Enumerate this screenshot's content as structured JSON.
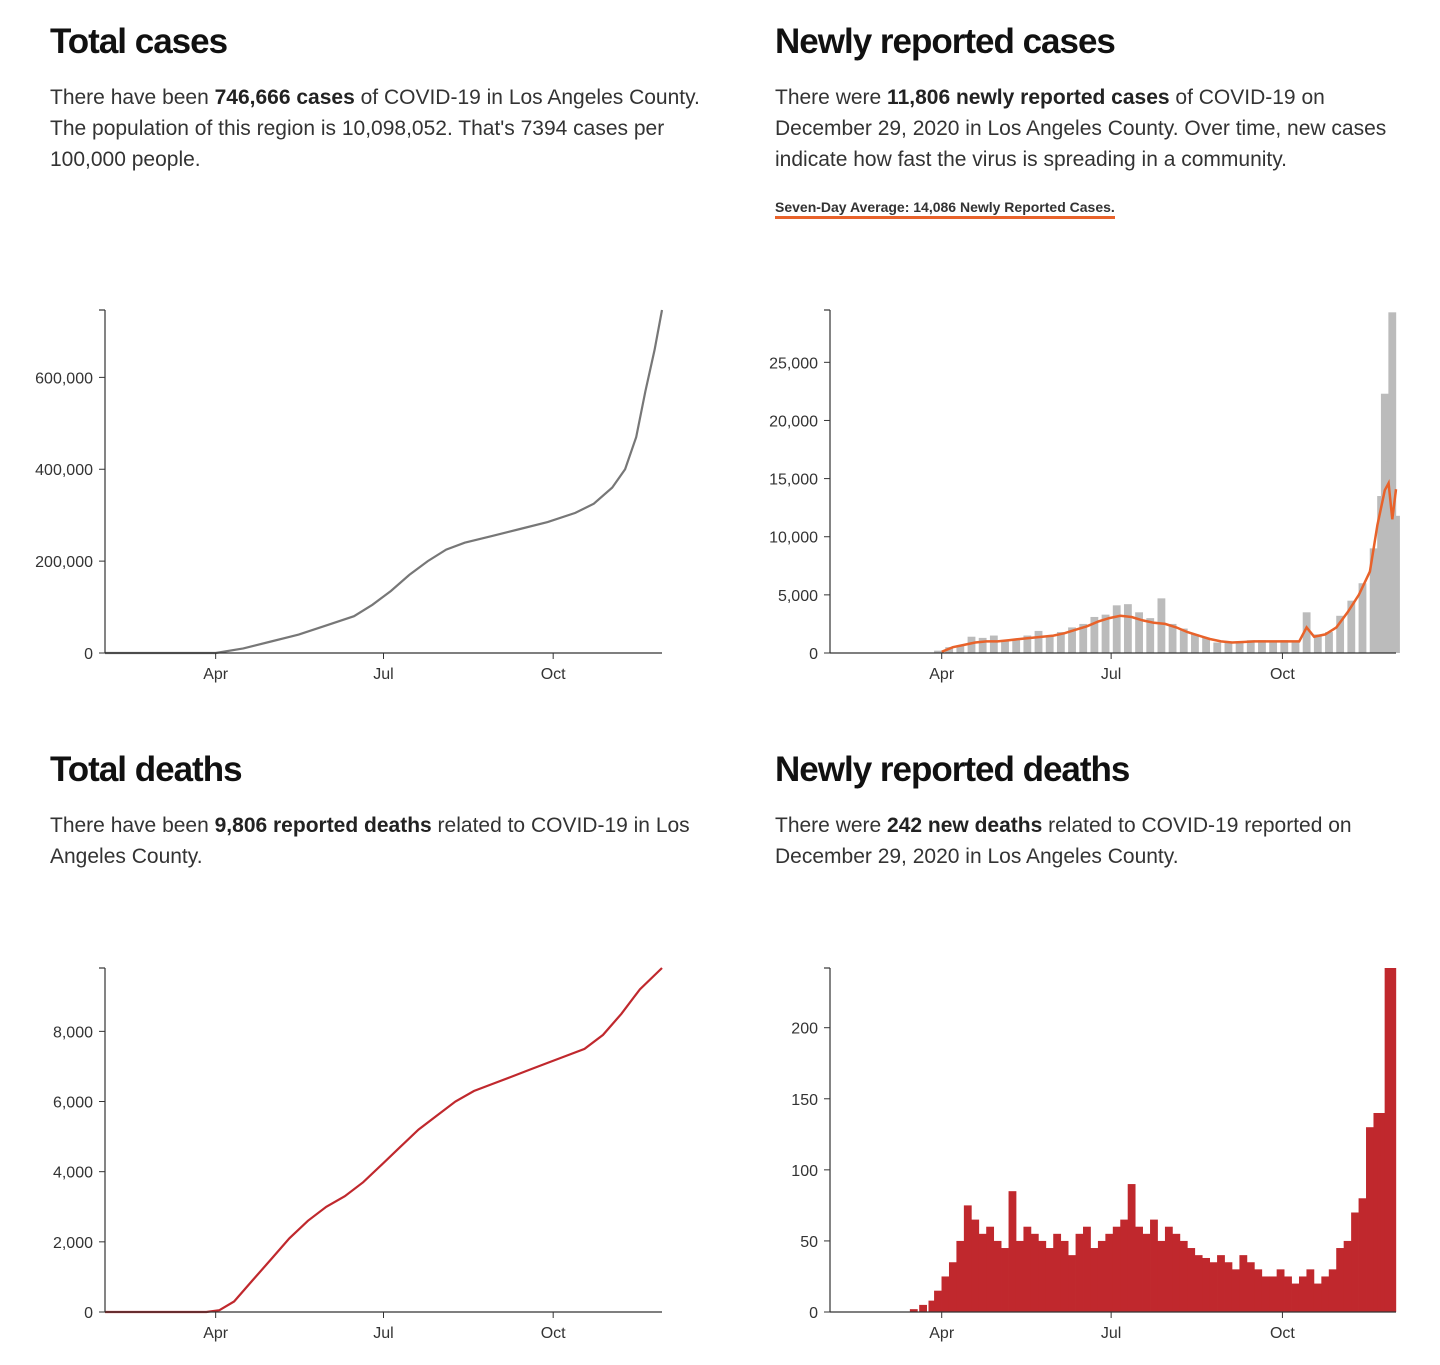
{
  "panels": {
    "total_cases": {
      "title": "Total cases",
      "desc_pre": "There have been ",
      "desc_bold": "746,666 cases",
      "desc_post": " of COVID-19 in Los Angeles County. The population of this region is 10,098,052. That's 7394 cases per 100,000 people."
    },
    "new_cases": {
      "title": "Newly reported cases",
      "desc_pre": "There were ",
      "desc_bold": "11,806 newly reported cases",
      "desc_post": " of COVID-19 on December 29, 2020 in Los Angeles County. Over time, new cases indicate how fast the virus is spreading in a community.",
      "avg_label": "Seven-Day Average: 14,086 Newly Reported Cases."
    },
    "total_deaths": {
      "title": "Total deaths",
      "desc_pre": "There have been ",
      "desc_bold": "9,806 reported deaths",
      "desc_post": " related to COVID-19 in Los Angeles County."
    },
    "new_deaths": {
      "title": "Newly reported deaths",
      "desc_pre": "There were ",
      "desc_bold": "242 new deaths",
      "desc_post": " related to COVID-19 reported on December 29, 2020 in Los Angeles County."
    }
  },
  "colors": {
    "cases_line": "#777777",
    "cases_bar": "#bbbbbb",
    "avg_line": "#e8622a",
    "deaths": "#c0282d",
    "axis": "#333333"
  },
  "chart_data": [
    {
      "id": "total-cases",
      "type": "line",
      "title": "Total cases",
      "x_domain_days": [
        0,
        302
      ],
      "x_ticks": [
        {
          "day": 60,
          "label": "Apr"
        },
        {
          "day": 151,
          "label": "Jul"
        },
        {
          "day": 243,
          "label": "Oct"
        }
      ],
      "y_domain": [
        0,
        746666
      ],
      "y_ticks": [
        {
          "value": 0,
          "label": "0"
        },
        {
          "value": 200000,
          "label": "200,000"
        },
        {
          "value": 400000,
          "label": "400,000"
        },
        {
          "value": 600000,
          "label": "600,000"
        }
      ],
      "points": [
        [
          60,
          0
        ],
        [
          75,
          10000
        ],
        [
          90,
          25000
        ],
        [
          105,
          40000
        ],
        [
          120,
          60000
        ],
        [
          135,
          80000
        ],
        [
          145,
          105000
        ],
        [
          155,
          135000
        ],
        [
          165,
          170000
        ],
        [
          175,
          200000
        ],
        [
          185,
          225000
        ],
        [
          195,
          240000
        ],
        [
          210,
          255000
        ],
        [
          225,
          270000
        ],
        [
          240,
          285000
        ],
        [
          255,
          305000
        ],
        [
          265,
          325000
        ],
        [
          275,
          360000
        ],
        [
          282,
          400000
        ],
        [
          288,
          470000
        ],
        [
          293,
          570000
        ],
        [
          298,
          660000
        ],
        [
          302,
          746666
        ]
      ]
    },
    {
      "id": "new-cases",
      "type": "bar+line",
      "title": "Newly reported cases",
      "x_domain_days": [
        0,
        304
      ],
      "x_ticks": [
        {
          "day": 60,
          "label": "Apr"
        },
        {
          "day": 151,
          "label": "Jul"
        },
        {
          "day": 243,
          "label": "Oct"
        }
      ],
      "y_domain": [
        0,
        29500
      ],
      "y_ticks": [
        {
          "value": 0,
          "label": "0"
        },
        {
          "value": 5000,
          "label": "5,000"
        },
        {
          "value": 10000,
          "label": "10,000"
        },
        {
          "value": 15000,
          "label": "15,000"
        },
        {
          "value": 20000,
          "label": "20,000"
        },
        {
          "value": 25000,
          "label": "25,000"
        }
      ],
      "bars": [
        [
          58,
          200
        ],
        [
          64,
          500
        ],
        [
          70,
          600
        ],
        [
          76,
          1400
        ],
        [
          82,
          1300
        ],
        [
          88,
          1500
        ],
        [
          94,
          1000
        ],
        [
          100,
          1200
        ],
        [
          106,
          1500
        ],
        [
          112,
          1900
        ],
        [
          118,
          1500
        ],
        [
          124,
          1800
        ],
        [
          130,
          2200
        ],
        [
          136,
          2500
        ],
        [
          142,
          3100
        ],
        [
          148,
          3300
        ],
        [
          154,
          4100
        ],
        [
          160,
          4200
        ],
        [
          166,
          3500
        ],
        [
          172,
          3000
        ],
        [
          178,
          4700
        ],
        [
          184,
          2500
        ],
        [
          190,
          2100
        ],
        [
          196,
          1600
        ],
        [
          202,
          1300
        ],
        [
          208,
          900
        ],
        [
          214,
          950
        ],
        [
          220,
          1000
        ],
        [
          226,
          1100
        ],
        [
          232,
          1100
        ],
        [
          238,
          1000
        ],
        [
          244,
          1100
        ],
        [
          250,
          1000
        ],
        [
          256,
          3500
        ],
        [
          262,
          1600
        ],
        [
          268,
          1800
        ],
        [
          274,
          3200
        ],
        [
          280,
          4500
        ],
        [
          286,
          6000
        ],
        [
          292,
          9000
        ],
        [
          296,
          13500
        ],
        [
          298,
          22300
        ],
        [
          300,
          16500
        ],
        [
          302,
          29300
        ],
        [
          304,
          11800
        ]
      ],
      "avg_line": [
        [
          60,
          100
        ],
        [
          66,
          500
        ],
        [
          72,
          700
        ],
        [
          78,
          900
        ],
        [
          84,
          1000
        ],
        [
          90,
          1000
        ],
        [
          96,
          1100
        ],
        [
          102,
          1200
        ],
        [
          108,
          1300
        ],
        [
          114,
          1400
        ],
        [
          120,
          1500
        ],
        [
          126,
          1700
        ],
        [
          132,
          2000
        ],
        [
          138,
          2300
        ],
        [
          144,
          2700
        ],
        [
          150,
          3000
        ],
        [
          156,
          3200
        ],
        [
          162,
          3100
        ],
        [
          168,
          2800
        ],
        [
          174,
          2600
        ],
        [
          180,
          2500
        ],
        [
          186,
          2200
        ],
        [
          192,
          1800
        ],
        [
          198,
          1500
        ],
        [
          204,
          1200
        ],
        [
          210,
          1000
        ],
        [
          216,
          900
        ],
        [
          222,
          950
        ],
        [
          228,
          1000
        ],
        [
          234,
          1000
        ],
        [
          240,
          1000
        ],
        [
          246,
          1000
        ],
        [
          252,
          1000
        ],
        [
          256,
          2200
        ],
        [
          260,
          1400
        ],
        [
          266,
          1600
        ],
        [
          272,
          2200
        ],
        [
          278,
          3500
        ],
        [
          284,
          5000
        ],
        [
          290,
          7000
        ],
        [
          294,
          11000
        ],
        [
          298,
          14000
        ],
        [
          300,
          14600
        ],
        [
          302,
          11500
        ],
        [
          304,
          14086
        ]
      ]
    },
    {
      "id": "total-deaths",
      "type": "line",
      "title": "Total deaths",
      "x_domain_days": [
        0,
        302
      ],
      "x_ticks": [
        {
          "day": 60,
          "label": "Apr"
        },
        {
          "day": 151,
          "label": "Jul"
        },
        {
          "day": 243,
          "label": "Oct"
        }
      ],
      "y_domain": [
        0,
        9806
      ],
      "y_ticks": [
        {
          "value": 0,
          "label": "0"
        },
        {
          "value": 2000,
          "label": "2,000"
        },
        {
          "value": 4000,
          "label": "4,000"
        },
        {
          "value": 6000,
          "label": "6,000"
        },
        {
          "value": 8000,
          "label": "8,000"
        }
      ],
      "points": [
        [
          55,
          0
        ],
        [
          62,
          50
        ],
        [
          70,
          300
        ],
        [
          80,
          900
        ],
        [
          90,
          1500
        ],
        [
          100,
          2100
        ],
        [
          110,
          2600
        ],
        [
          120,
          3000
        ],
        [
          130,
          3300
        ],
        [
          140,
          3700
        ],
        [
          150,
          4200
        ],
        [
          160,
          4700
        ],
        [
          170,
          5200
        ],
        [
          180,
          5600
        ],
        [
          190,
          6000
        ],
        [
          200,
          6300
        ],
        [
          210,
          6500
        ],
        [
          220,
          6700
        ],
        [
          230,
          6900
        ],
        [
          240,
          7100
        ],
        [
          250,
          7300
        ],
        [
          260,
          7500
        ],
        [
          270,
          7900
        ],
        [
          280,
          8500
        ],
        [
          290,
          9200
        ],
        [
          302,
          9806
        ]
      ]
    },
    {
      "id": "new-deaths",
      "type": "bar",
      "title": "Newly reported deaths",
      "x_domain_days": [
        0,
        304
      ],
      "x_ticks": [
        {
          "day": 60,
          "label": "Apr"
        },
        {
          "day": 151,
          "label": "Jul"
        },
        {
          "day": 243,
          "label": "Oct"
        }
      ],
      "y_domain": [
        0,
        242
      ],
      "y_ticks": [
        {
          "value": 0,
          "label": "0"
        },
        {
          "value": 50,
          "label": "50"
        },
        {
          "value": 100,
          "label": "100"
        },
        {
          "value": 150,
          "label": "150"
        },
        {
          "value": 200,
          "label": "200"
        }
      ],
      "bars": [
        [
          45,
          2
        ],
        [
          50,
          5
        ],
        [
          55,
          8
        ],
        [
          58,
          15
        ],
        [
          62,
          25
        ],
        [
          66,
          35
        ],
        [
          70,
          50
        ],
        [
          74,
          75
        ],
        [
          78,
          65
        ],
        [
          82,
          55
        ],
        [
          86,
          60
        ],
        [
          90,
          50
        ],
        [
          94,
          45
        ],
        [
          98,
          85
        ],
        [
          102,
          50
        ],
        [
          106,
          60
        ],
        [
          110,
          55
        ],
        [
          114,
          50
        ],
        [
          118,
          45
        ],
        [
          122,
          55
        ],
        [
          126,
          50
        ],
        [
          130,
          40
        ],
        [
          134,
          55
        ],
        [
          138,
          60
        ],
        [
          142,
          45
        ],
        [
          146,
          50
        ],
        [
          150,
          55
        ],
        [
          154,
          60
        ],
        [
          158,
          65
        ],
        [
          162,
          90
        ],
        [
          166,
          60
        ],
        [
          170,
          55
        ],
        [
          174,
          65
        ],
        [
          178,
          50
        ],
        [
          182,
          60
        ],
        [
          186,
          55
        ],
        [
          190,
          50
        ],
        [
          194,
          45
        ],
        [
          198,
          40
        ],
        [
          202,
          38
        ],
        [
          206,
          35
        ],
        [
          210,
          40
        ],
        [
          214,
          35
        ],
        [
          218,
          30
        ],
        [
          222,
          40
        ],
        [
          226,
          35
        ],
        [
          230,
          30
        ],
        [
          234,
          25
        ],
        [
          238,
          25
        ],
        [
          242,
          30
        ],
        [
          246,
          25
        ],
        [
          250,
          20
        ],
        [
          254,
          25
        ],
        [
          258,
          30
        ],
        [
          262,
          20
        ],
        [
          266,
          25
        ],
        [
          270,
          30
        ],
        [
          274,
          45
        ],
        [
          278,
          50
        ],
        [
          282,
          70
        ],
        [
          286,
          80
        ],
        [
          290,
          130
        ],
        [
          294,
          140
        ],
        [
          296,
          110
        ],
        [
          298,
          140
        ],
        [
          300,
          242
        ],
        [
          302,
          242
        ]
      ]
    }
  ]
}
